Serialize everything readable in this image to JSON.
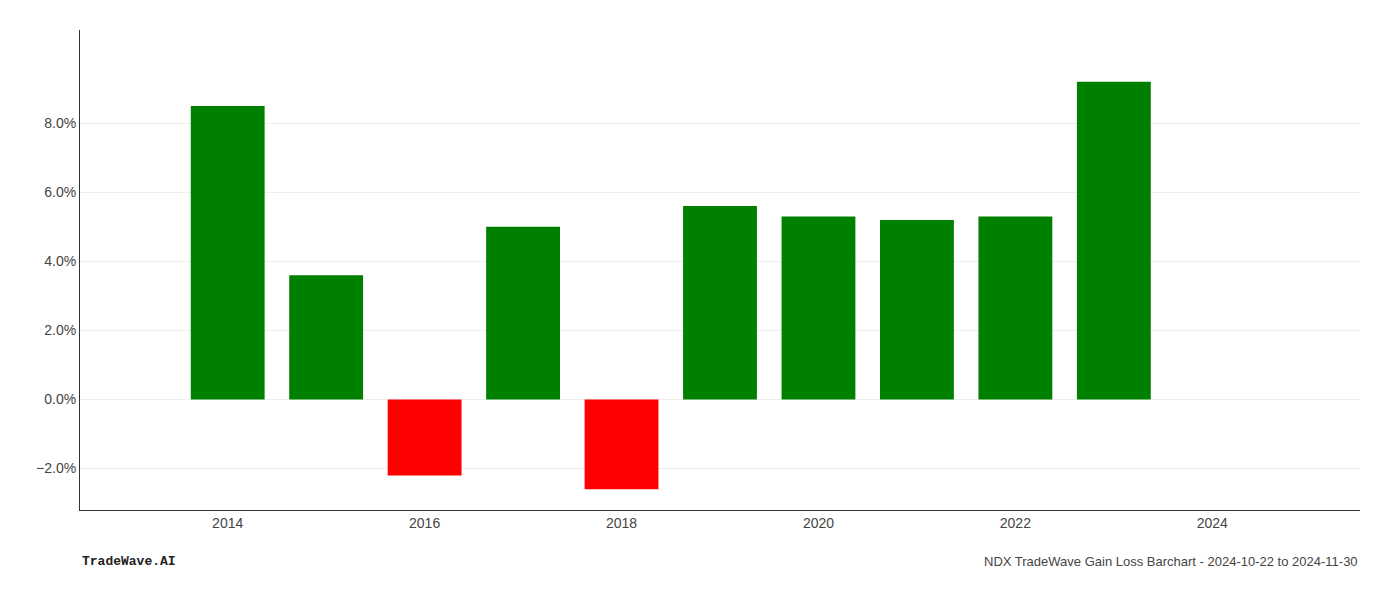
{
  "chart_data": {
    "type": "bar",
    "x": [
      2014,
      2015,
      2016,
      2017,
      2018,
      2019,
      2020,
      2021,
      2022,
      2023
    ],
    "values": [
      0.085,
      0.036,
      -0.022,
      0.05,
      -0.026,
      0.056,
      0.053,
      0.052,
      0.053,
      0.092
    ],
    "colors": [
      "#008000",
      "#008000",
      "#ff0000",
      "#008000",
      "#ff0000",
      "#008000",
      "#008000",
      "#008000",
      "#008000",
      "#008000"
    ],
    "xlim": [
      2012.5,
      2025.5
    ],
    "xticks": [
      2014,
      2016,
      2018,
      2020,
      2022,
      2024
    ],
    "ylim": [
      -0.032,
      0.107
    ],
    "yticks": [
      {
        "value": -0.02,
        "label": "−2.0%"
      },
      {
        "value": 0.0,
        "label": "0.0%"
      },
      {
        "value": 0.02,
        "label": "2.0%"
      },
      {
        "value": 0.04,
        "label": "4.0%"
      },
      {
        "value": 0.06,
        "label": "6.0%"
      },
      {
        "value": 0.08,
        "label": "8.0%"
      }
    ],
    "grid": true,
    "annotations": [
      "TradeWave.AI",
      "NDX TradeWave Gain Loss Barchart - 2024-10-22 to 2024-11-30"
    ]
  }
}
